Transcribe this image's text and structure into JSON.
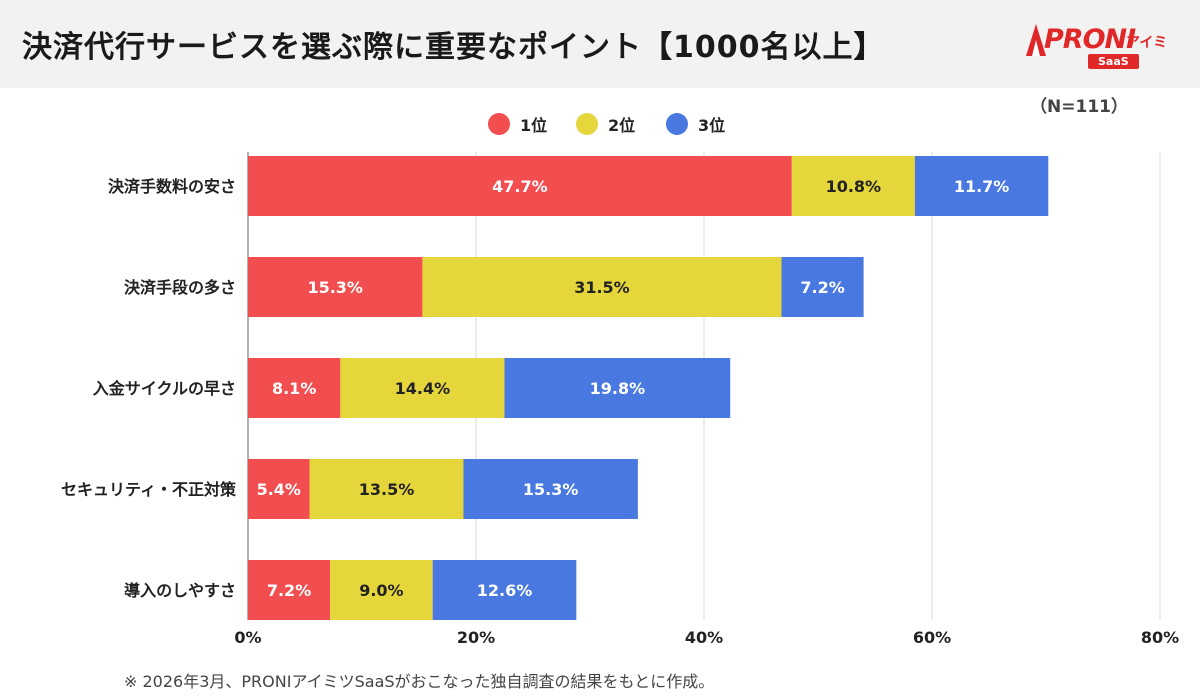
{
  "header": {
    "title": "決済代行サービスを選ぶ際に重要なポイント【1000名以上】",
    "logo_brand": "PRONI",
    "logo_sub": "アイミツ",
    "logo_badge": "SaaS"
  },
  "sample_size": "（N=111）",
  "footnote": "※ 2026年3月、PRONIアイミツSaaSがおこなった独自調査の結果をもとに作成。",
  "colors": {
    "rank1": "#f24d4f",
    "rank2": "#e5d63b",
    "rank3": "#4878e0",
    "grid": "#d9d9d9",
    "axis": "#666666"
  },
  "chart_data": {
    "type": "bar",
    "orientation": "horizontal",
    "stacked": true,
    "categories": [
      "決済手数料の安さ",
      "決済手段の多さ",
      "入金サイクルの早さ",
      "セキュリティ・不正対策",
      "導入のしやすさ"
    ],
    "series": [
      {
        "name": "1位",
        "values": [
          47.7,
          15.3,
          8.1,
          5.4,
          7.2
        ],
        "labels": [
          "47.7%",
          "15.3%",
          "8.1%",
          "5.4%",
          "7.2%"
        ],
        "color": "#f24d4f",
        "label_color": "#ffffff"
      },
      {
        "name": "2位",
        "values": [
          10.8,
          31.5,
          14.4,
          13.5,
          9.0
        ],
        "labels": [
          "10.8%",
          "31.5%",
          "14.4%",
          "13.5%",
          "9.0%"
        ],
        "color": "#e5d63b",
        "label_color": "#222222"
      },
      {
        "name": "3位",
        "values": [
          11.7,
          7.2,
          19.8,
          15.3,
          12.6
        ],
        "labels": [
          "11.7%",
          "7.2%",
          "19.8%",
          "15.3%",
          "12.6%"
        ],
        "color": "#4878e0",
        "label_color": "#ffffff"
      }
    ],
    "xlim": [
      0,
      80
    ],
    "xticks": [
      0,
      20,
      40,
      60,
      80
    ],
    "xtick_labels": [
      "0%",
      "20%",
      "40%",
      "60%",
      "80%"
    ],
    "legend_position": "top-center",
    "grid": true
  }
}
